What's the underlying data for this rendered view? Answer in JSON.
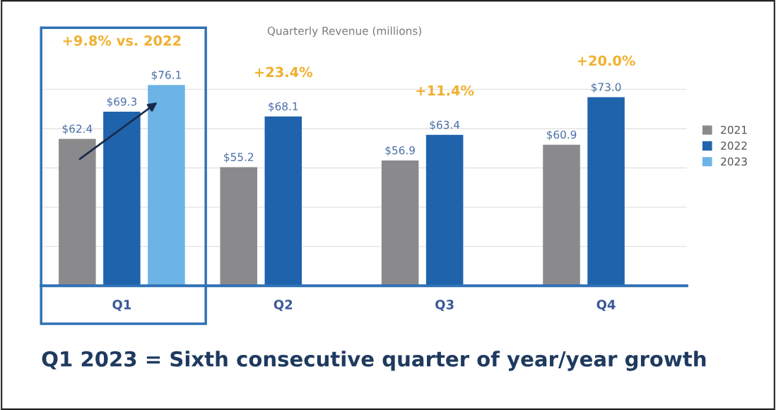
{
  "chart_data": {
    "type": "bar",
    "title": "Quarterly Revenue (millions)",
    "categories": [
      "Q1",
      "Q2",
      "Q3",
      "Q4"
    ],
    "series": [
      {
        "name": "2021",
        "color": "#8a8a8c",
        "values": [
          62.4,
          55.2,
          56.9,
          60.9
        ],
        "value_labels": [
          "$62.4",
          "$55.2",
          "$56.9",
          "$60.9"
        ]
      },
      {
        "name": "2022",
        "color": "#1f63ad",
        "values": [
          69.3,
          68.1,
          63.4,
          73.0
        ],
        "value_labels": [
          "$69.3",
          "$68.1",
          "$63.4",
          "$73.0"
        ]
      },
      {
        "name": "2023",
        "color": "#6cb4e6",
        "values": [
          76.1,
          null,
          null,
          null
        ],
        "value_labels": [
          "$76.1",
          null,
          null,
          null
        ]
      }
    ],
    "yticks": [
      {
        "value": 25,
        "label": null
      },
      {
        "value": 35,
        "label": null
      },
      {
        "value": 45,
        "label": null
      },
      {
        "value": 55,
        "label": null
      },
      {
        "value": 65,
        "label": null
      },
      {
        "value": 75,
        "label": null
      }
    ],
    "tick_labels": "x",
    "grid": "y",
    "legend": "right",
    "annotations": [
      "+9.8% vs. 2022",
      "+23.4%",
      "+11.4%",
      "+20.0%",
      "Q1 2023 = Sixth consecutive quarter of year/year growth"
    ]
  }
}
